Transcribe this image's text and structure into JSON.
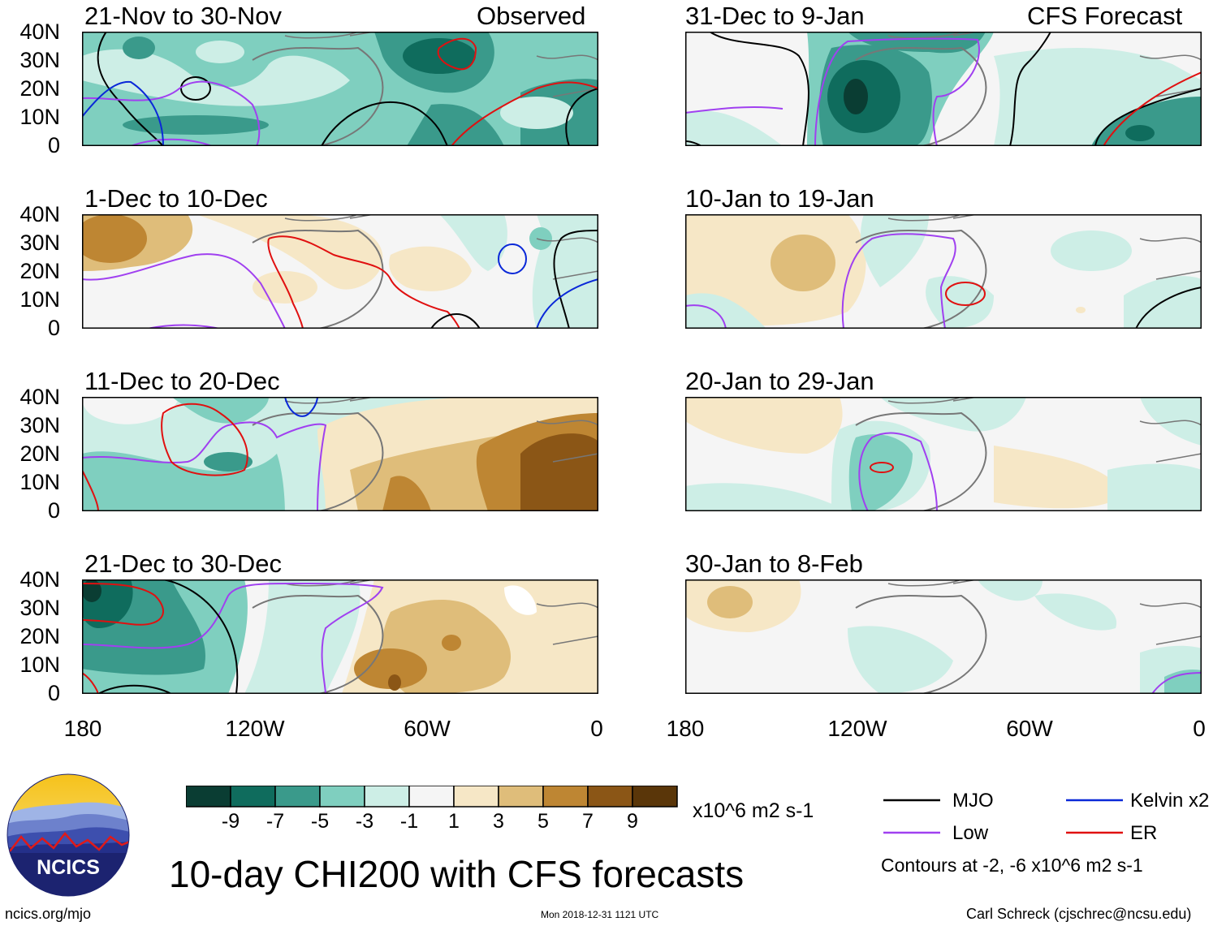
{
  "colors": {
    "neg9": "#0a3d33",
    "neg7": "#0f6c5d",
    "neg5": "#3a9a8b",
    "neg3": "#7fcfbf",
    "neg1": "#cdeee6",
    "zero": "#f5f5f5",
    "pos1": "#f6e7c6",
    "pos3": "#dfbd7a",
    "pos5": "#be8633",
    "pos7": "#8b5616",
    "pos9": "#5a3609",
    "mjo": "#000000",
    "low": "#a040f0",
    "kelvin": "#0a28d8",
    "er": "#e01010",
    "land": "#777777"
  },
  "panels": {
    "observed_label": "Observed",
    "forecast_label": "CFS Forecast",
    "left": [
      {
        "title": "21-Nov to 30-Nov"
      },
      {
        "title": "1-Dec to 10-Dec"
      },
      {
        "title": "11-Dec to 20-Dec"
      },
      {
        "title": "21-Dec to 30-Dec"
      }
    ],
    "right": [
      {
        "title": "31-Dec to 9-Jan"
      },
      {
        "title": "10-Jan to 19-Jan"
      },
      {
        "title": "20-Jan to 29-Jan"
      },
      {
        "title": "30-Jan to 8-Feb"
      }
    ]
  },
  "axes": {
    "lat_labels": [
      "40N",
      "30N",
      "20N",
      "10N",
      "0"
    ],
    "lon_labels": [
      "180",
      "120W",
      "60W",
      "0"
    ]
  },
  "colorbar": {
    "labels": [
      "-9",
      "-7",
      "-5",
      "-3",
      "-1",
      "1",
      "3",
      "5",
      "7",
      "9"
    ],
    "units": "x10^6 m2 s-1"
  },
  "legend": {
    "mjo": "MJO",
    "kelvin": "Kelvin x2",
    "low": "Low",
    "er": "ER",
    "contours_note": "Contours at -2, -6 x10^6 m2 s-1"
  },
  "footer": {
    "logo_text": "NCICS",
    "title": "10-day CHI200 with CFS forecasts",
    "url": "ncics.org/mjo",
    "timestamp": "Mon 2018-12-31 1121 UTC",
    "credit": "Carl Schreck (cjschrec@ncsu.edu)"
  }
}
